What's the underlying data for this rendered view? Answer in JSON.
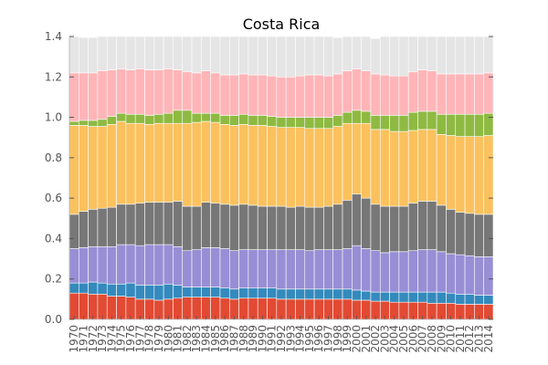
{
  "chart_data": {
    "type": "bar",
    "stacked": true,
    "title": "Costa Rica",
    "xlabel": "",
    "ylabel": "",
    "ylim": [
      0,
      1.4
    ],
    "yticks": [
      "0.0",
      "0.2",
      "0.4",
      "0.6",
      "0.8",
      "1.0",
      "1.2",
      "1.4"
    ],
    "grid": false,
    "legend": "none",
    "background": "#e5e5e5",
    "categories": [
      "1970",
      "1971",
      "1972",
      "1973",
      "1974",
      "1975",
      "1976",
      "1977",
      "1978",
      "1979",
      "1980",
      "1981",
      "1982",
      "1983",
      "1984",
      "1985",
      "1986",
      "1987",
      "1988",
      "1989",
      "1990",
      "1991",
      "1992",
      "1993",
      "1994",
      "1995",
      "1996",
      "1997",
      "1998",
      "1999",
      "2000",
      "2001",
      "2002",
      "2003",
      "2004",
      "2005",
      "2006",
      "2007",
      "2008",
      "2009",
      "2010",
      "2011",
      "2012",
      "2013",
      "2014"
    ],
    "series": [
      {
        "color": "#e24a33",
        "values": [
          0.13,
          0.13,
          0.125,
          0.125,
          0.115,
          0.115,
          0.11,
          0.1,
          0.1,
          0.095,
          0.1,
          0.105,
          0.11,
          0.11,
          0.11,
          0.11,
          0.105,
          0.1,
          0.105,
          0.105,
          0.105,
          0.105,
          0.1,
          0.1,
          0.1,
          0.1,
          0.1,
          0.1,
          0.1,
          0.1,
          0.095,
          0.095,
          0.09,
          0.09,
          0.085,
          0.085,
          0.085,
          0.085,
          0.08,
          0.08,
          0.08,
          0.075,
          0.075,
          0.075,
          0.075
        ]
      },
      {
        "color": "#348abd",
        "values": [
          0.05,
          0.05,
          0.06,
          0.055,
          0.06,
          0.06,
          0.07,
          0.07,
          0.07,
          0.075,
          0.075,
          0.065,
          0.05,
          0.05,
          0.05,
          0.05,
          0.05,
          0.05,
          0.05,
          0.05,
          0.05,
          0.05,
          0.05,
          0.05,
          0.05,
          0.05,
          0.05,
          0.05,
          0.05,
          0.05,
          0.05,
          0.045,
          0.045,
          0.045,
          0.05,
          0.05,
          0.05,
          0.05,
          0.055,
          0.055,
          0.05,
          0.05,
          0.05,
          0.045,
          0.045
        ]
      },
      {
        "color": "#988ed5",
        "values": [
          0.17,
          0.175,
          0.175,
          0.18,
          0.185,
          0.195,
          0.19,
          0.195,
          0.2,
          0.2,
          0.195,
          0.19,
          0.18,
          0.185,
          0.195,
          0.195,
          0.195,
          0.19,
          0.19,
          0.19,
          0.19,
          0.19,
          0.195,
          0.195,
          0.195,
          0.19,
          0.195,
          0.195,
          0.195,
          0.2,
          0.22,
          0.21,
          0.205,
          0.195,
          0.2,
          0.2,
          0.205,
          0.21,
          0.21,
          0.2,
          0.195,
          0.195,
          0.19,
          0.19,
          0.19
        ]
      },
      {
        "color": "#777777",
        "values": [
          0.17,
          0.18,
          0.185,
          0.19,
          0.195,
          0.2,
          0.2,
          0.21,
          0.21,
          0.21,
          0.21,
          0.225,
          0.22,
          0.215,
          0.225,
          0.22,
          0.22,
          0.225,
          0.225,
          0.22,
          0.215,
          0.215,
          0.215,
          0.21,
          0.215,
          0.215,
          0.21,
          0.215,
          0.225,
          0.24,
          0.255,
          0.25,
          0.23,
          0.23,
          0.225,
          0.225,
          0.235,
          0.24,
          0.24,
          0.23,
          0.22,
          0.21,
          0.21,
          0.21,
          0.21
        ]
      },
      {
        "color": "#fbc15e",
        "values": [
          0.44,
          0.425,
          0.41,
          0.405,
          0.41,
          0.41,
          0.4,
          0.395,
          0.385,
          0.39,
          0.39,
          0.385,
          0.41,
          0.415,
          0.4,
          0.4,
          0.395,
          0.395,
          0.395,
          0.395,
          0.4,
          0.395,
          0.39,
          0.395,
          0.39,
          0.39,
          0.39,
          0.385,
          0.385,
          0.38,
          0.35,
          0.37,
          0.37,
          0.38,
          0.37,
          0.37,
          0.36,
          0.355,
          0.355,
          0.35,
          0.365,
          0.375,
          0.38,
          0.385,
          0.39
        ]
      },
      {
        "color": "#8eba42",
        "values": [
          0.02,
          0.025,
          0.03,
          0.035,
          0.04,
          0.04,
          0.045,
          0.045,
          0.045,
          0.045,
          0.05,
          0.065,
          0.065,
          0.045,
          0.04,
          0.045,
          0.045,
          0.05,
          0.05,
          0.05,
          0.05,
          0.05,
          0.05,
          0.05,
          0.05,
          0.055,
          0.055,
          0.055,
          0.055,
          0.055,
          0.065,
          0.06,
          0.07,
          0.07,
          0.08,
          0.08,
          0.09,
          0.09,
          0.09,
          0.1,
          0.105,
          0.11,
          0.11,
          0.11,
          0.11
        ]
      },
      {
        "color": "#ffb5b8",
        "values": [
          0.24,
          0.235,
          0.235,
          0.24,
          0.23,
          0.22,
          0.22,
          0.225,
          0.225,
          0.22,
          0.22,
          0.2,
          0.19,
          0.2,
          0.21,
          0.2,
          0.2,
          0.2,
          0.2,
          0.2,
          0.2,
          0.2,
          0.2,
          0.2,
          0.205,
          0.21,
          0.21,
          0.205,
          0.205,
          0.205,
          0.205,
          0.2,
          0.205,
          0.2,
          0.195,
          0.195,
          0.2,
          0.205,
          0.2,
          0.2,
          0.2,
          0.2,
          0.2,
          0.2,
          0.2
        ]
      },
      {
        "color": "#e5e5e5",
        "values": [
          0.18,
          0.175,
          0.175,
          0.17,
          0.165,
          0.16,
          0.165,
          0.16,
          0.165,
          0.165,
          0.16,
          0.165,
          0.175,
          0.18,
          0.17,
          0.18,
          0.19,
          0.19,
          0.185,
          0.19,
          0.19,
          0.195,
          0.2,
          0.2,
          0.2,
          0.19,
          0.19,
          0.195,
          0.18,
          0.17,
          0.16,
          0.17,
          0.175,
          0.19,
          0.195,
          0.195,
          0.175,
          0.165,
          0.17,
          0.185,
          0.185,
          0.185,
          0.185,
          0.185,
          0.18
        ]
      }
    ]
  }
}
